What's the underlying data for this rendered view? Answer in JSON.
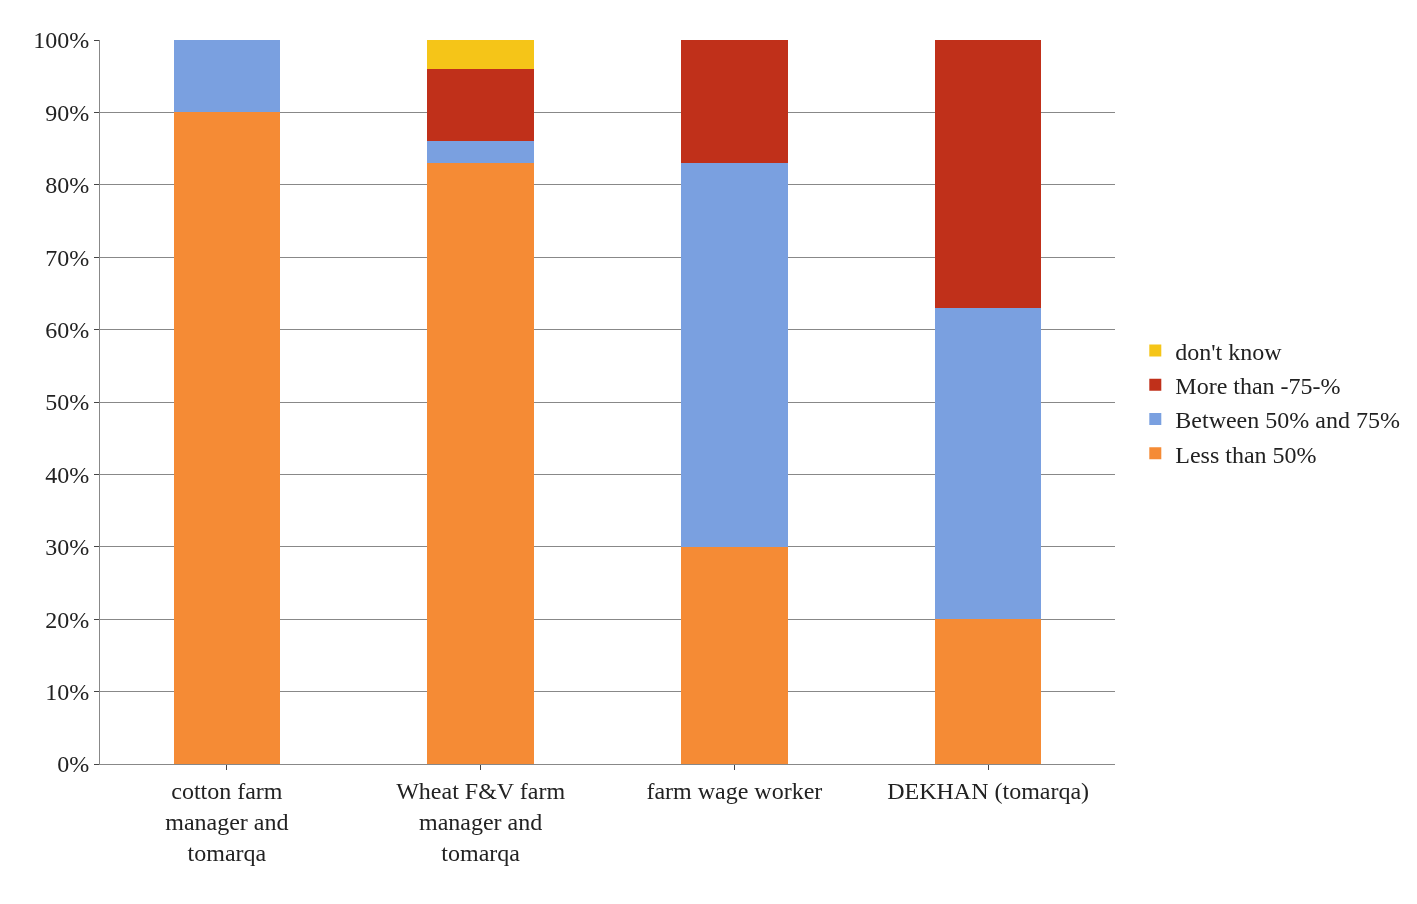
{
  "chart_data": {
    "type": "bar",
    "stacked": true,
    "categories": [
      "cotton farm manager and tomarqa",
      "Wheat F&V farm manager and tomarqa",
      "farm wage worker",
      "DEKHAN (tomarqa)"
    ],
    "series": [
      {
        "name": "Less than 50%",
        "color": "#f58b35",
        "values": [
          90,
          83,
          30,
          20
        ]
      },
      {
        "name": "Between 50% and 75%",
        "color": "#7aa0e0",
        "values": [
          10,
          3,
          53,
          43
        ]
      },
      {
        "name": "More than -75-%",
        "color": "#c0301a",
        "values": [
          0,
          10,
          17,
          37
        ]
      },
      {
        "name": "don't know",
        "color": "#f5c518",
        "values": [
          0,
          4,
          0,
          0
        ]
      }
    ],
    "ylim": [
      0,
      100
    ],
    "yticks": [
      {
        "value": 0,
        "label": "0%"
      },
      {
        "value": 10,
        "label": "10%"
      },
      {
        "value": 20,
        "label": "20%"
      },
      {
        "value": 30,
        "label": "30%"
      },
      {
        "value": 40,
        "label": "40%"
      },
      {
        "value": 50,
        "label": "50%"
      },
      {
        "value": 60,
        "label": "60%"
      },
      {
        "value": 70,
        "label": "70%"
      },
      {
        "value": 80,
        "label": "80%"
      },
      {
        "value": 90,
        "label": "90%"
      },
      {
        "value": 100,
        "label": "100%"
      }
    ],
    "grid": "y",
    "legend": "right"
  }
}
